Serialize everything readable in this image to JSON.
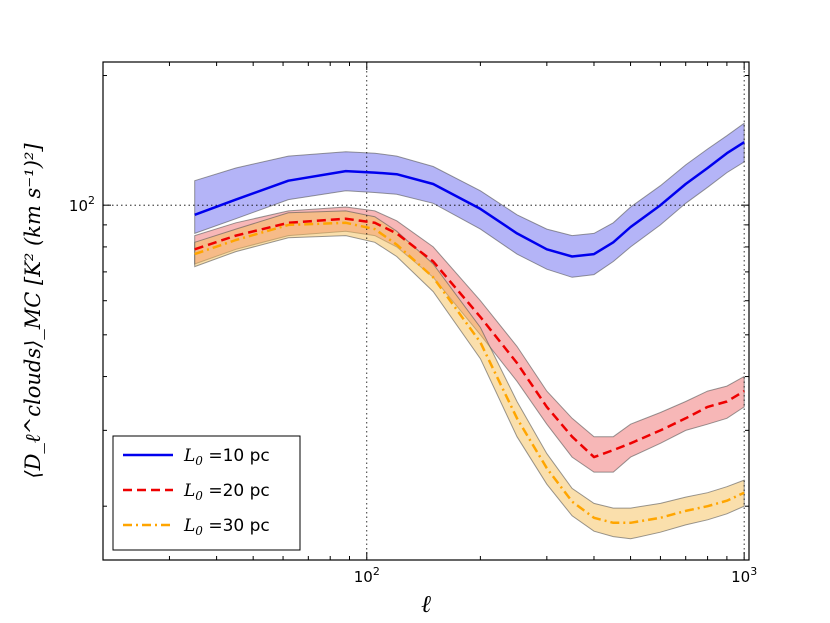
{
  "chart_data": {
    "type": "area",
    "title": "",
    "xlabel": "ℓ",
    "ylabel": "⟨D_ℓ^clouds⟩_MC [K² (km s⁻¹)²]",
    "xscale": "log",
    "yscale": "log",
    "xlim": [
      20,
      1030
    ],
    "ylim": [
      15,
      215
    ],
    "grid": "dotted at 10^2 on both axes",
    "x_ticks": [
      {
        "value": 100,
        "base": "10",
        "exp": "2"
      },
      {
        "value": 1000,
        "base": "10",
        "exp": "3"
      }
    ],
    "y_ticks": [
      {
        "value": 100,
        "base": "10",
        "exp": "2"
      }
    ],
    "legend_position": "lower-left",
    "x": [
      35,
      45,
      62,
      88,
      105,
      120,
      150,
      200,
      250,
      300,
      350,
      400,
      450,
      500,
      600,
      700,
      800,
      900,
      1000
    ],
    "series": [
      {
        "name": "L0 =10 pc",
        "legend_math": "L",
        "legend_sub": "0",
        "legend_text": " =10 pc",
        "color": "#0000ee",
        "band_color": "#6a6af0",
        "dash": "",
        "values": [
          95,
          103,
          114,
          120,
          119,
          118,
          112,
          98,
          86,
          79,
          76,
          77,
          82,
          89,
          100,
          112,
          122,
          132,
          140
        ],
        "lower": [
          86,
          93,
          103,
          108,
          107,
          106,
          101,
          88,
          77,
          71,
          68,
          69,
          74,
          80,
          90,
          101,
          110,
          119,
          126
        ],
        "upper": [
          114,
          122,
          130,
          133,
          132,
          130,
          123,
          108,
          95,
          88,
          85,
          86,
          91,
          99,
          111,
          124,
          135,
          145,
          155
        ]
      },
      {
        "name": "L0 =20 pc",
        "legend_math": "L",
        "legend_sub": "0",
        "legend_text": " =20 pc",
        "color": "#ee0000",
        "band_color": "#f07070",
        "dash": "9,5",
        "values": [
          79,
          85,
          91,
          93,
          91,
          86,
          74,
          55,
          43,
          34,
          29,
          26,
          27,
          28,
          30,
          32,
          34,
          35,
          37
        ],
        "lower": [
          73,
          79,
          85,
          87,
          85,
          80,
          68,
          50,
          39,
          31,
          26,
          24,
          24,
          26,
          28,
          30,
          31,
          32,
          34
        ],
        "upper": [
          85,
          91,
          97,
          99,
          97,
          92,
          80,
          60,
          47,
          37,
          32,
          29,
          29,
          31,
          33,
          35,
          37,
          38,
          40
        ]
      },
      {
        "name": "L0 =30 pc",
        "legend_math": "L",
        "legend_sub": "0",
        "legend_text": " =30 pc",
        "color": "#ffa500",
        "band_color": "#f5c05a",
        "dash": "9,4,2,4",
        "values": [
          77,
          83,
          90,
          91,
          88,
          81,
          68,
          48,
          32,
          24.5,
          20.5,
          18.8,
          18.3,
          18.3,
          18.8,
          19.5,
          20,
          20.6,
          21.5
        ],
        "lower": [
          72,
          78,
          84,
          85,
          82,
          76,
          63,
          44,
          29,
          22.5,
          19,
          17.5,
          17,
          16.8,
          17.4,
          18.1,
          18.6,
          19.2,
          20
        ],
        "upper": [
          82,
          88,
          96,
          97,
          94,
          87,
          73,
          52,
          35,
          26.5,
          22,
          20.3,
          19.8,
          19.8,
          20.3,
          21,
          21.5,
          22.2,
          23
        ]
      }
    ]
  }
}
